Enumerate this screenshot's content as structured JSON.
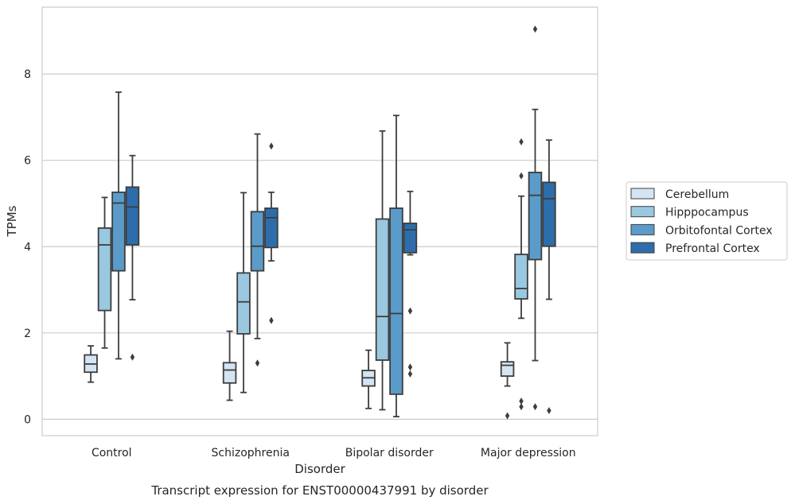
{
  "chart_data": {
    "type": "box",
    "caption": "Transcript expression for ENST00000437991 by disorder",
    "xlabel": "Disorder",
    "ylabel": "TPMs",
    "ylim": [
      -0.38,
      9.55
    ],
    "yticks": [
      0,
      2,
      4,
      6,
      8
    ],
    "grid": "horizontal",
    "legend_position": "right",
    "categories": [
      "Control",
      "Schizophrenia",
      "Bipolar disorder",
      "Major depression"
    ],
    "series": [
      {
        "name": "Cerebellum",
        "color": "#d4e4f2",
        "boxes": [
          {
            "whislo": 0.86,
            "q1": 1.09,
            "med": 1.28,
            "q3": 1.49,
            "whishi": 1.7,
            "fliers": []
          },
          {
            "whislo": 0.44,
            "q1": 0.84,
            "med": 1.14,
            "q3": 1.31,
            "whishi": 2.04,
            "fliers": []
          },
          {
            "whislo": 0.25,
            "q1": 0.77,
            "med": 0.96,
            "q3": 1.13,
            "whishi": 1.6,
            "fliers": []
          },
          {
            "whislo": 0.77,
            "q1": 1.0,
            "med": 1.25,
            "q3": 1.33,
            "whishi": 1.77,
            "fliers": [
              0.08
            ]
          }
        ]
      },
      {
        "name": "Hipppocampus",
        "color": "#9ac8e0",
        "boxes": [
          {
            "whislo": 1.65,
            "q1": 2.52,
            "med": 4.04,
            "q3": 4.43,
            "whishi": 5.14,
            "fliers": []
          },
          {
            "whislo": 0.62,
            "q1": 1.98,
            "med": 2.72,
            "q3": 3.39,
            "whishi": 5.25,
            "fliers": []
          },
          {
            "whislo": 0.22,
            "q1": 1.37,
            "med": 2.38,
            "q3": 4.64,
            "whishi": 6.68,
            "fliers": []
          },
          {
            "whislo": 2.34,
            "q1": 2.79,
            "med": 3.03,
            "q3": 3.82,
            "whishi": 5.17,
            "fliers": [
              5.64,
              6.43,
              0.42,
              0.29
            ]
          }
        ]
      },
      {
        "name": "Orbitofontal Cortex",
        "color": "#5b9bc9",
        "boxes": [
          {
            "whislo": 1.4,
            "q1": 3.44,
            "med": 5.01,
            "q3": 5.26,
            "whishi": 7.58,
            "fliers": []
          },
          {
            "whislo": 1.87,
            "q1": 3.44,
            "med": 4.01,
            "q3": 4.81,
            "whishi": 6.61,
            "fliers": [
              1.3
            ]
          },
          {
            "whislo": 0.06,
            "q1": 0.58,
            "med": 2.45,
            "q3": 4.89,
            "whishi": 7.04,
            "fliers": []
          },
          {
            "whislo": 1.36,
            "q1": 3.7,
            "med": 5.19,
            "q3": 5.72,
            "whishi": 7.18,
            "fliers": [
              9.04,
              0.29
            ]
          }
        ]
      },
      {
        "name": "Prefrontal Cortex",
        "color": "#2e6dab",
        "boxes": [
          {
            "whislo": 2.77,
            "q1": 4.04,
            "med": 4.92,
            "q3": 5.38,
            "whishi": 6.11,
            "fliers": [
              1.44
            ]
          },
          {
            "whislo": 3.67,
            "q1": 3.98,
            "med": 4.67,
            "q3": 4.89,
            "whishi": 5.26,
            "fliers": [
              6.33,
              2.29
            ]
          },
          {
            "whislo": 3.81,
            "q1": 3.86,
            "med": 4.39,
            "q3": 4.54,
            "whishi": 5.28,
            "fliers": [
              2.51,
              1.21,
              1.05
            ]
          },
          {
            "whislo": 2.78,
            "q1": 4.01,
            "med": 5.11,
            "q3": 5.49,
            "whishi": 6.47,
            "fliers": [
              0.2
            ]
          }
        ]
      }
    ]
  }
}
